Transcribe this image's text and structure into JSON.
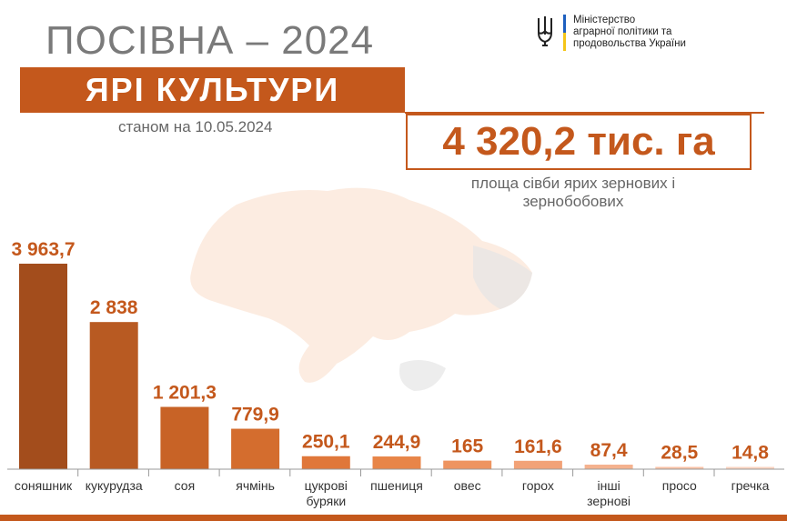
{
  "header": {
    "title": "ПОСІВНА – 2024",
    "banner": "ЯРІ КУЛЬТУРИ",
    "date": "станом на 10.05.2024"
  },
  "ministry": {
    "line1": "Міністерство",
    "line2": "аграрної політики та",
    "line3": "продовольства України",
    "flag_colors": [
      "#1d5fbf",
      "#f5c518"
    ]
  },
  "summary": {
    "total": "4 320,2 тис. га",
    "subtitle_line1": "площа сівби ярих зернових і",
    "subtitle_line2": "зернобобових"
  },
  "colors": {
    "accent": "#c4581c",
    "title_gray": "#7a7a7a"
  },
  "chart_data": {
    "type": "bar",
    "categories": [
      "соняшник",
      "кукурудза",
      "соя",
      "ячмінь",
      "цукрові буряки",
      "пшениця",
      "овес",
      "горох",
      "інші зернові",
      "просо",
      "гречка"
    ],
    "category_lines": [
      [
        "соняшник"
      ],
      [
        "кукурудза"
      ],
      [
        "соя"
      ],
      [
        "ячмінь"
      ],
      [
        "цукрові",
        "буряки"
      ],
      [
        "пшениця"
      ],
      [
        "овес"
      ],
      [
        "горох"
      ],
      [
        "інші",
        "зернові"
      ],
      [
        "просо"
      ],
      [
        "гречка"
      ]
    ],
    "values": [
      3963.7,
      2838,
      1201.3,
      779.9,
      250.1,
      244.9,
      165,
      161.6,
      87.4,
      28.5,
      14.8
    ],
    "labels": [
      "3 963,7",
      "2 838",
      "1 201,3",
      "779,9",
      "250,1",
      "244,9",
      "165",
      "161,6",
      "87,4",
      "28,5",
      "14,8"
    ],
    "bar_colors": [
      "#a34d1c",
      "#b85a22",
      "#c86326",
      "#d46d2e",
      "#e0773a",
      "#e88548",
      "#ee9460",
      "#f2a277",
      "#f5b28e",
      "#f8c2a6",
      "#fad3c0"
    ],
    "title": "",
    "xlabel": "",
    "ylabel": "",
    "ylim": [
      0,
      3963.7
    ],
    "grid": false,
    "legend": "none"
  }
}
